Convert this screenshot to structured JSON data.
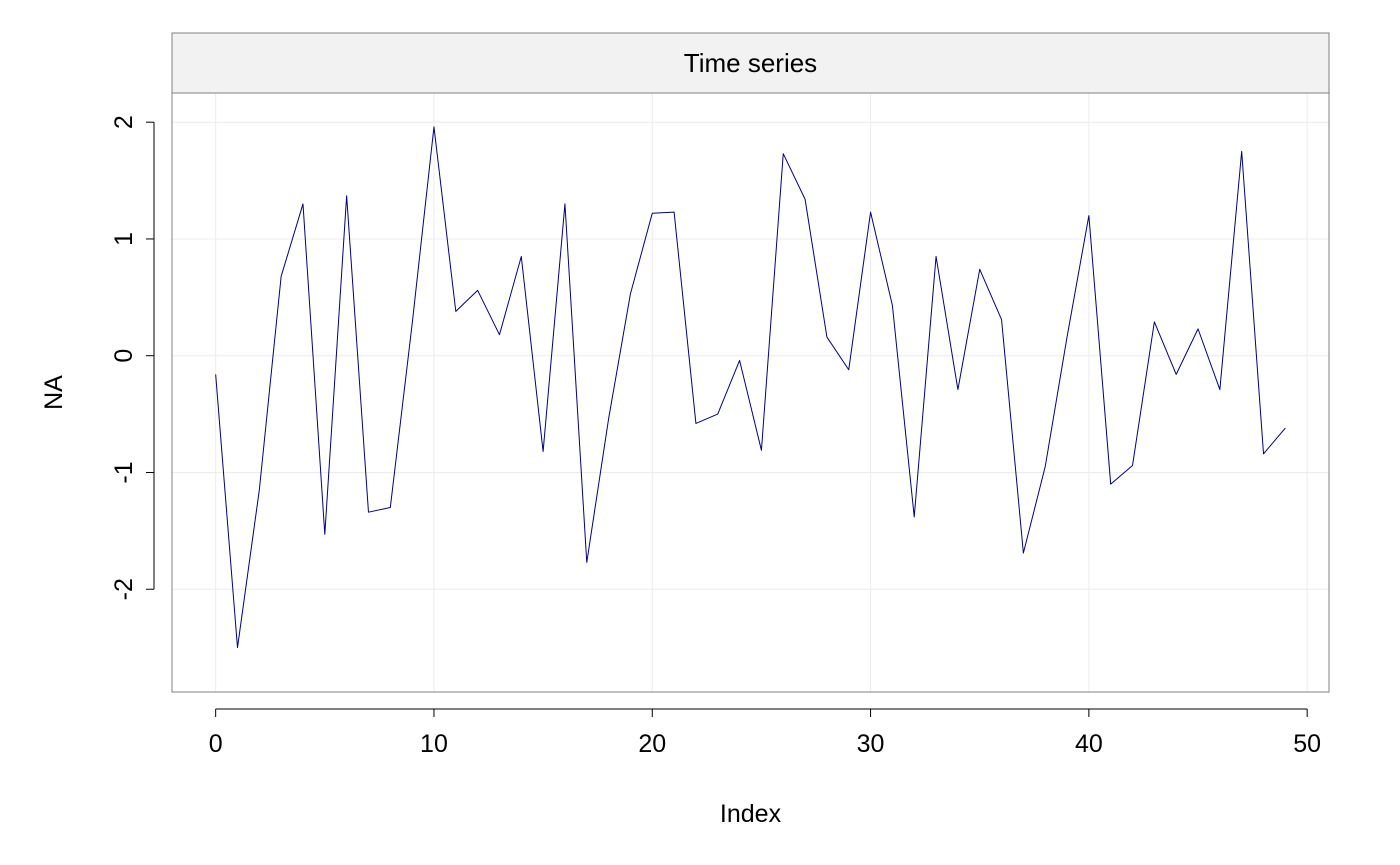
{
  "chart_data": {
    "type": "line",
    "title": "Time series",
    "xlabel": "Index",
    "ylabel": "NA",
    "xlim": [
      -2,
      51
    ],
    "ylim": [
      -2.88,
      2.25
    ],
    "x_ticks": [
      0,
      10,
      20,
      30,
      40,
      50
    ],
    "y_ticks": [
      -2,
      -1,
      0,
      1,
      2
    ],
    "grid": true,
    "line_color": "#000080",
    "grid_color": "#ececec",
    "strip_color": "#f2f2f2",
    "frame_color": "#808080",
    "x": [
      0,
      1,
      2,
      3,
      4,
      5,
      6,
      7,
      8,
      9,
      10,
      11,
      12,
      13,
      14,
      15,
      16,
      17,
      18,
      19,
      20,
      21,
      22,
      23,
      24,
      25,
      26,
      27,
      28,
      29,
      30,
      31,
      32,
      33,
      34,
      35,
      36,
      37,
      38,
      39,
      40,
      41,
      42,
      43,
      44,
      45,
      46,
      47,
      48,
      49
    ],
    "values": [
      -0.16,
      -2.5,
      -1.15,
      0.68,
      1.3,
      -1.53,
      1.37,
      -1.34,
      -1.3,
      0.27,
      1.96,
      0.38,
      0.56,
      0.18,
      0.85,
      -0.82,
      1.3,
      -1.77,
      -0.54,
      0.53,
      1.22,
      1.23,
      -0.58,
      -0.5,
      -0.04,
      -0.81,
      1.73,
      1.34,
      0.16,
      -0.12,
      1.23,
      0.43,
      -1.38,
      0.85,
      -0.29,
      0.74,
      0.31,
      -1.69,
      -0.95,
      0.16,
      1.2,
      -1.1,
      -0.94,
      0.29,
      -0.16,
      0.23,
      -0.29,
      1.75,
      -0.84,
      -0.62
    ]
  }
}
